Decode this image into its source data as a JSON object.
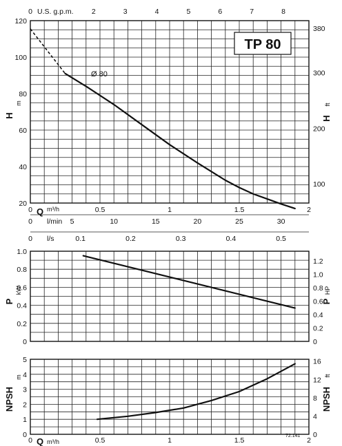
{
  "model_label": "TP 80",
  "figure_code": "72.141",
  "chart_data": [
    {
      "type": "line",
      "id": "head",
      "xlabel": "Q",
      "xunit": "m³/h",
      "xlim": [
        0,
        2
      ],
      "x_ticks": [
        "0",
        "0.5",
        "1",
        "1.5",
        "2"
      ],
      "ylabel": "H",
      "yunit": "m",
      "ylim": [
        20,
        120
      ],
      "y_ticks": [
        "20",
        "40",
        "60",
        "80",
        "100",
        "120"
      ],
      "y2label": "H",
      "y2unit": "ft",
      "y2_ticks": [
        "100",
        "200",
        "300",
        "380"
      ],
      "top_axis": {
        "label": "U.S. g.p.m.",
        "ticks": [
          "0",
          "2",
          "3",
          "4",
          "5",
          "6",
          "7",
          "8"
        ]
      },
      "extra_axes": [
        {
          "label": "l/min",
          "ticks": [
            "0",
            "5",
            "10",
            "15",
            "20",
            "25",
            "30"
          ]
        },
        {
          "label": "l/s",
          "ticks": [
            "0",
            "0.1",
            "0.2",
            "0.3",
            "0.4",
            "0.5"
          ]
        }
      ],
      "grid": true,
      "annotation": "Ø 80",
      "series": [
        {
          "dashed_part": {
            "x": [
              0,
              0.25
            ],
            "y": [
              115.5,
              91
            ]
          },
          "x": [
            0.25,
            0.4,
            0.6,
            0.8,
            1.0,
            1.2,
            1.4,
            1.5,
            1.6,
            1.8,
            1.9
          ],
          "y": [
            91,
            84,
            74,
            63,
            52,
            42,
            32.5,
            28.5,
            25,
            19.5,
            17
          ]
        }
      ]
    },
    {
      "type": "line",
      "id": "power",
      "xlim": [
        0,
        2
      ],
      "ylabel": "P",
      "yunit": "kW",
      "ylim": [
        0,
        1.0
      ],
      "y_ticks": [
        "0",
        "0.2",
        "0.4",
        "0.6",
        "0.8",
        "1.0"
      ],
      "y2label": "P",
      "y2unit": "HP",
      "y2_ticks": [
        "0",
        "0.2",
        "0.4",
        "0.6",
        "0.8",
        "1.0",
        "1.2"
      ],
      "grid": true,
      "series": [
        {
          "x": [
            0.38,
            1.9
          ],
          "y": [
            0.95,
            0.37
          ]
        }
      ]
    },
    {
      "type": "line",
      "id": "npsh",
      "xlabel": "Q",
      "xunit": "m³/h",
      "xlim": [
        0,
        2
      ],
      "x_ticks": [
        "0",
        "0.5",
        "1",
        "1.5",
        "2"
      ],
      "ylabel": "NPSH",
      "yunit": "m",
      "ylim": [
        0,
        5
      ],
      "y_ticks": [
        "0",
        "1",
        "2",
        "3",
        "4",
        "5"
      ],
      "y2label": "NPSH",
      "y2unit": "ft",
      "y2_ticks": [
        "0",
        "4",
        "8",
        "12",
        "16"
      ],
      "grid": true,
      "series": [
        {
          "x": [
            0.48,
            0.7,
            0.9,
            1.1,
            1.3,
            1.5,
            1.7,
            1.9
          ],
          "y": [
            1.0,
            1.2,
            1.45,
            1.75,
            2.25,
            2.85,
            3.7,
            4.7
          ]
        }
      ]
    }
  ]
}
